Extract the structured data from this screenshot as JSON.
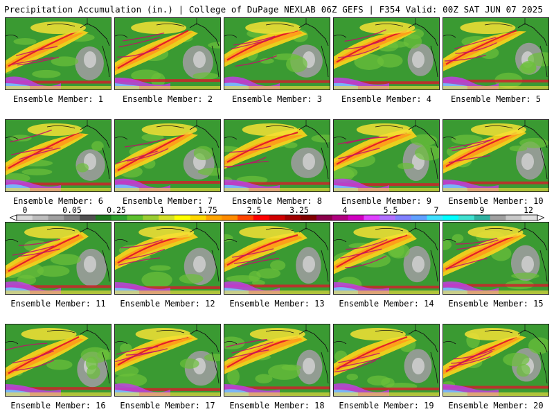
{
  "header": {
    "title_left": "Precipitation Accumulation (in.) | College of DuPage NEXLAB",
    "title_right": "06Z GEFS | F354 Valid: 00Z SAT JUN 07 2025"
  },
  "colorbar": {
    "tick_labels": [
      "0",
      "0.05",
      "0.25",
      "1",
      "1.75",
      "2.5",
      "3.25",
      "4",
      "5.5",
      "7",
      "9",
      "12"
    ],
    "colors": [
      "#d9d9d9",
      "#bdbdbd",
      "#a0a0a0",
      "#808080",
      "#4f4f4f",
      "#1f7a1f",
      "#2ea02e",
      "#5cbf2e",
      "#9acd32",
      "#d4e02a",
      "#ffff00",
      "#ffd700",
      "#ffa500",
      "#ff8c00",
      "#ff4500",
      "#ff0000",
      "#d00000",
      "#a00000",
      "#800000",
      "#8b004b",
      "#b0007f",
      "#d000c0",
      "#e040ff",
      "#b070ff",
      "#8080ff",
      "#60a0ff",
      "#40e0ff",
      "#00ffff",
      "#40e0d0",
      "#30b0a0",
      "#a0a0a0",
      "#c8c8c8",
      "#e0e0e0"
    ]
  },
  "members": [
    {
      "label": "Ensemble Member: 1"
    },
    {
      "label": "Ensemble Member: 2"
    },
    {
      "label": "Ensemble Member: 3"
    },
    {
      "label": "Ensemble Member: 4"
    },
    {
      "label": "Ensemble Member: 5"
    },
    {
      "label": "Ensemble Member: 6"
    },
    {
      "label": "Ensemble Member: 7"
    },
    {
      "label": "Ensemble Member: 8"
    },
    {
      "label": "Ensemble Member: 9"
    },
    {
      "label": "Ensemble Member: 10"
    },
    {
      "label": "Ensemble Member: 11"
    },
    {
      "label": "Ensemble Member: 12"
    },
    {
      "label": "Ensemble Member: 13"
    },
    {
      "label": "Ensemble Member: 14"
    },
    {
      "label": "Ensemble Member: 15"
    },
    {
      "label": "Ensemble Member: 16"
    },
    {
      "label": "Ensemble Member: 17"
    },
    {
      "label": "Ensemble Member: 18"
    },
    {
      "label": "Ensemble Member: 19"
    },
    {
      "label": "Ensemble Member: 20"
    }
  ]
}
